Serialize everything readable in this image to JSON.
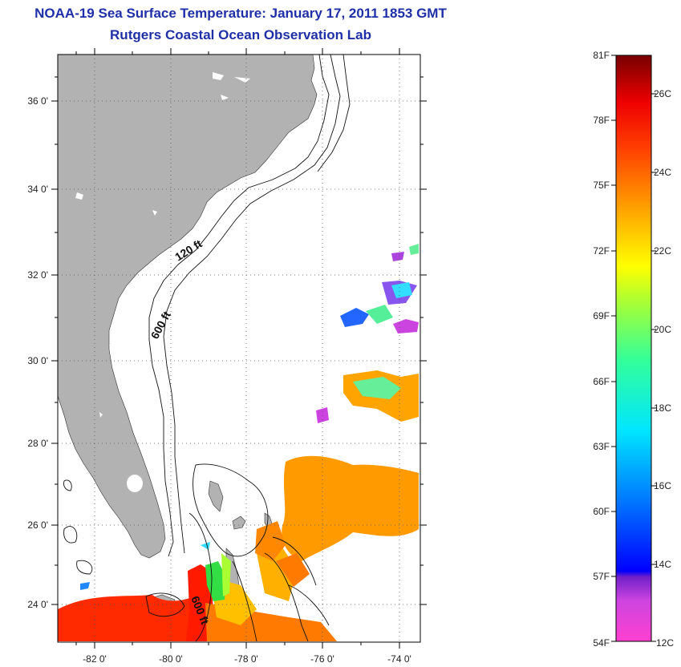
{
  "title_line1": "NOAA-19 Sea Surface Temperature:  January 17, 2011 1853 GMT",
  "title_line2": "Rutgers Coastal Ocean Observation Lab",
  "map": {
    "lat_labels": [
      "36 0'",
      "34 0'",
      "32 0'",
      "30 0'",
      "28 0'",
      "26 0'",
      "24 0'"
    ],
    "lon_labels": [
      "-82 0'",
      "-80 0'",
      "-78 0'",
      "-76 0'",
      "-74 0'"
    ],
    "contour_labels": [
      "120 ft",
      "600 ft",
      "600 ft"
    ],
    "colors": {
      "land": "#b2b2b2",
      "frame": "#000000",
      "grid": "#555555"
    }
  },
  "colorbar": {
    "f_labels": [
      "81F",
      "78F",
      "75F",
      "72F",
      "69F",
      "66F",
      "63F",
      "60F",
      "57F",
      "54F"
    ],
    "c_labels": [
      "26C",
      "24C",
      "22C",
      "20C",
      "18C",
      "16C",
      "14C",
      "12C"
    ]
  }
}
